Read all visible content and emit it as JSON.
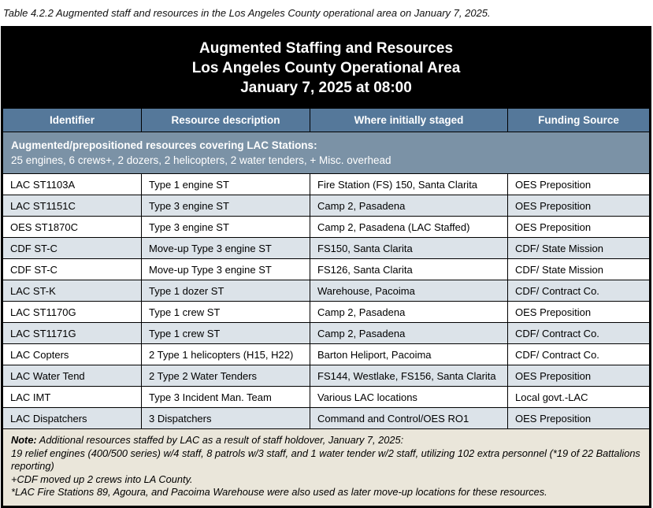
{
  "caption": "Table 4.2.2 Augmented staff and resources in the Los Angeles County operational area on January 7, 2025.",
  "colors": {
    "title_bg": "#000000",
    "header_bg": "#55789a",
    "section_bg": "#7b92a6",
    "row_alt_bg": "#dce3e9",
    "note_bg": "#eae6da",
    "border": "#000000"
  },
  "table": {
    "title_lines": [
      "Augmented Staffing and Resources",
      "Los Angeles County Operational Area",
      "January 7, 2025 at 08:00"
    ],
    "columns": [
      "Identifier",
      "Resource description",
      "Where initially staged",
      "Funding Source"
    ],
    "section_header": {
      "line1": "Augmented/prepositioned resources covering LAC Stations:",
      "line2": "25 engines, 6 crews+, 2 dozers, 2 helicopters, 2 water tenders, + Misc. overhead"
    },
    "rows": [
      {
        "identifier": "LAC ST1103A",
        "description": "Type 1 engine ST",
        "staged": "Fire Station (FS) 150, Santa Clarita",
        "funding": "OES Preposition"
      },
      {
        "identifier": "LAC ST1151C",
        "description": "Type 3 engine ST",
        "staged": "Camp 2, Pasadena",
        "funding": "OES Preposition"
      },
      {
        "identifier": "OES ST1870C",
        "description": "Type 3 engine ST",
        "staged": "Camp 2, Pasadena (LAC Staffed)",
        "funding": "OES Preposition"
      },
      {
        "identifier": "CDF ST-C",
        "description": "Move-up Type 3 engine ST",
        "staged": "FS150, Santa Clarita",
        "funding": "CDF/ State Mission"
      },
      {
        "identifier": "CDF ST-C",
        "description": "Move-up Type 3 engine ST",
        "staged": "FS126, Santa Clarita",
        "funding": "CDF/ State Mission"
      },
      {
        "identifier": "LAC ST-K",
        "description": "Type 1 dozer ST",
        "staged": "Warehouse, Pacoima",
        "funding": "CDF/ Contract Co."
      },
      {
        "identifier": "LAC ST1170G",
        "description": "Type 1 crew ST",
        "staged": "Camp 2, Pasadena",
        "funding": "OES Preposition"
      },
      {
        "identifier": "LAC ST1171G",
        "description": "Type 1 crew ST",
        "staged": "Camp 2, Pasadena",
        "funding": "CDF/ Contract Co."
      },
      {
        "identifier": "LAC Copters",
        "description": "2 Type 1 helicopters (H15, H22)",
        "staged": "Barton Heliport, Pacoima",
        "funding": "CDF/ Contract Co."
      },
      {
        "identifier": "LAC Water Tend",
        "description": "2 Type 2 Water Tenders",
        "staged": "FS144, Westlake, FS156, Santa Clarita",
        "funding": "OES Preposition"
      },
      {
        "identifier": "LAC IMT",
        "description": "Type 3 Incident Man. Team",
        "staged": "Various LAC locations",
        "funding": "Local govt.-LAC"
      },
      {
        "identifier": "LAC Dispatchers",
        "description": "3 Dispatchers",
        "staged": "Command and Control/OES RO1",
        "funding": "OES Preposition"
      }
    ],
    "note": {
      "label": "Note:",
      "line1": " Additional resources staffed by LAC as a result of staff holdover, January 7, 2025:",
      "line2": "19 relief engines (400/500 series) w/4 staff, 8 patrols w/3 staff, and 1 water tender w/2 staff, utilizing 102 extra personnel (*19 of 22 Battalions reporting)",
      "line3": "+CDF moved up 2 crews into LA County.",
      "line4": "*LAC Fire Stations 89, Agoura, and Pacoima Warehouse were also used as later move-up locations for these resources."
    }
  }
}
